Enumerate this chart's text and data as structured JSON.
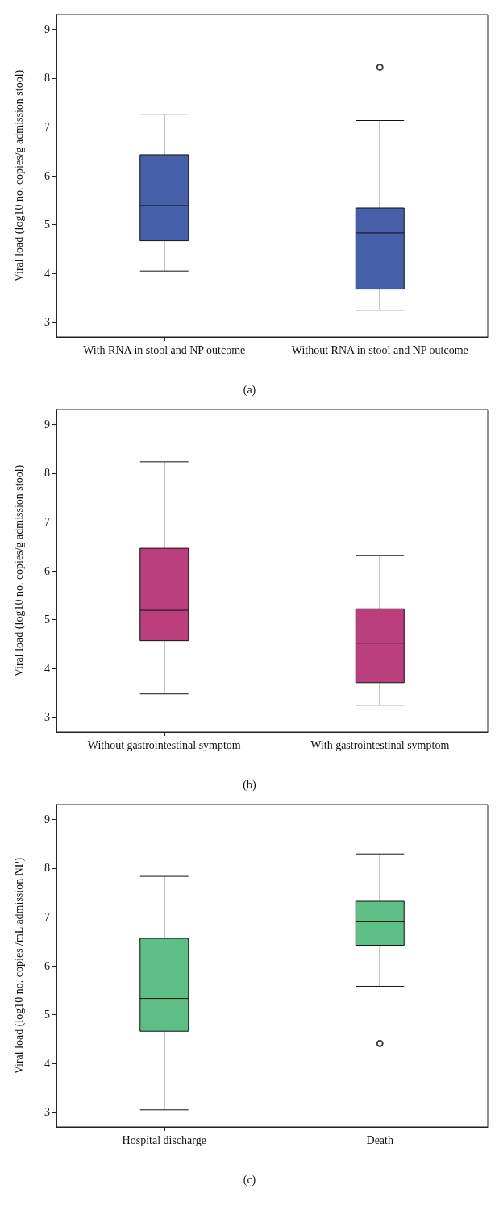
{
  "chart_data": [
    {
      "type": "box",
      "ylabel": "Viral load (log10 no. copies/g admission stool)",
      "categories": [
        "With RNA in stool and NP outcome",
        "Without RNA in stool and NP outcome"
      ],
      "ylim": [
        2.7,
        9.3
      ],
      "yticks": [
        3,
        4,
        5,
        6,
        7,
        8,
        9
      ],
      "grid": false,
      "annotations": [
        "(a)"
      ],
      "series": [
        {
          "color": "#4560a8",
          "boxes": [
            {
              "low": 4.05,
              "q1": 4.67,
              "median": 5.39,
              "q3": 6.43,
              "high": 7.26
            },
            {
              "low": 3.25,
              "q1": 3.68,
              "median": 4.83,
              "q3": 5.34,
              "high": 7.13,
              "outliers": [
                8.22
              ]
            }
          ]
        }
      ]
    },
    {
      "type": "box",
      "ylabel": "Viral load (log10 no. copies/g admission stool)",
      "categories": [
        "Without gastrointestinal symptom",
        "With gastrointestinal symptom"
      ],
      "ylim": [
        2.7,
        9.3
      ],
      "yticks": [
        3,
        4,
        5,
        6,
        7,
        8,
        9
      ],
      "grid": false,
      "annotations": [
        "(b)"
      ],
      "series": [
        {
          "color": "#bb3f7c",
          "boxes": [
            {
              "low": 3.48,
              "q1": 4.57,
              "median": 5.19,
              "q3": 6.46,
              "high": 8.23
            },
            {
              "low": 3.25,
              "q1": 3.71,
              "median": 4.52,
              "q3": 5.22,
              "high": 6.31
            }
          ]
        }
      ]
    },
    {
      "type": "box",
      "ylabel": "Viral load (log10 no. copies /mL admission NP)",
      "categories": [
        "Hospital discharge",
        "Death"
      ],
      "ylim": [
        2.7,
        9.3
      ],
      "yticks": [
        3,
        4,
        5,
        6,
        7,
        8,
        9
      ],
      "grid": false,
      "annotations": [
        "(c)"
      ],
      "series": [
        {
          "color": "#5dbf86",
          "boxes": [
            {
              "low": 3.05,
              "q1": 4.66,
              "median": 5.33,
              "q3": 6.56,
              "high": 7.83
            },
            {
              "low": 5.58,
              "q1": 6.42,
              "median": 6.9,
              "q3": 7.32,
              "high": 8.29,
              "outliers": [
                4.41
              ]
            }
          ]
        }
      ]
    }
  ]
}
